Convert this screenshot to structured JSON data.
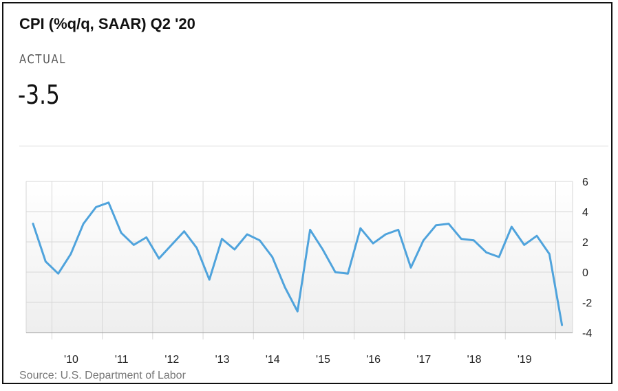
{
  "header": {
    "title": "CPI (%q/q, SAAR) Q2 '20",
    "actual_label": "ACTUAL",
    "actual_value": "-3.5"
  },
  "source": "Source: U.S. Department of Labor",
  "colors": {
    "line": "#4fa3dc",
    "grid": "#d7d7d7",
    "axis": "#9a9a9a"
  },
  "chart_data": {
    "type": "line",
    "title": "CPI (%q/q, SAAR) Q2 '20",
    "xlabel": "",
    "ylabel": "",
    "ylim": [
      -4,
      6
    ],
    "y_ticks": [
      6,
      4,
      2,
      0,
      -2,
      -4
    ],
    "x_tick_labels": [
      "'10",
      "'11",
      "'12",
      "'13",
      "'14",
      "'15",
      "'16",
      "'17",
      "'18",
      "'19"
    ],
    "grid": true,
    "series": [
      {
        "values": [
          {
            "x": "2009-Q3",
            "y": 3.2
          },
          {
            "x": "2009-Q4",
            "y": 0.7
          },
          {
            "x": "2010-Q1",
            "y": -0.1
          },
          {
            "x": "2010-Q2",
            "y": 1.2
          },
          {
            "x": "2010-Q3",
            "y": 3.2
          },
          {
            "x": "2010-Q4",
            "y": 4.3
          },
          {
            "x": "2011-Q1",
            "y": 4.6
          },
          {
            "x": "2011-Q2",
            "y": 2.6
          },
          {
            "x": "2011-Q3",
            "y": 1.8
          },
          {
            "x": "2011-Q4",
            "y": 2.3
          },
          {
            "x": "2012-Q1",
            "y": 0.9
          },
          {
            "x": "2012-Q2",
            "y": 1.8
          },
          {
            "x": "2012-Q3",
            "y": 2.7
          },
          {
            "x": "2012-Q4",
            "y": 1.6
          },
          {
            "x": "2013-Q1",
            "y": -0.5
          },
          {
            "x": "2013-Q2",
            "y": 2.2
          },
          {
            "x": "2013-Q3",
            "y": 1.5
          },
          {
            "x": "2013-Q4",
            "y": 2.5
          },
          {
            "x": "2014-Q1",
            "y": 2.1
          },
          {
            "x": "2014-Q2",
            "y": 1.0
          },
          {
            "x": "2014-Q3",
            "y": -1.0
          },
          {
            "x": "2014-Q4",
            "y": -2.6
          },
          {
            "x": "2015-Q1",
            "y": 2.8
          },
          {
            "x": "2015-Q2",
            "y": 1.5
          },
          {
            "x": "2015-Q3",
            "y": 0.0
          },
          {
            "x": "2015-Q4",
            "y": -0.1
          },
          {
            "x": "2016-Q1",
            "y": 2.9
          },
          {
            "x": "2016-Q2",
            "y": 1.9
          },
          {
            "x": "2016-Q3",
            "y": 2.5
          },
          {
            "x": "2016-Q4",
            "y": 2.8
          },
          {
            "x": "2017-Q1",
            "y": 0.3
          },
          {
            "x": "2017-Q2",
            "y": 2.1
          },
          {
            "x": "2017-Q3",
            "y": 3.1
          },
          {
            "x": "2017-Q4",
            "y": 3.2
          },
          {
            "x": "2018-Q1",
            "y": 2.2
          },
          {
            "x": "2018-Q2",
            "y": 2.1
          },
          {
            "x": "2018-Q3",
            "y": 1.3
          },
          {
            "x": "2018-Q4",
            "y": 1.0
          },
          {
            "x": "2019-Q1",
            "y": 3.0
          },
          {
            "x": "2019-Q2",
            "y": 1.8
          },
          {
            "x": "2019-Q3",
            "y": 2.4
          },
          {
            "x": "2019-Q4",
            "y": 1.2
          },
          {
            "x": "2020-Q1",
            "y": -3.5
          }
        ]
      }
    ]
  }
}
